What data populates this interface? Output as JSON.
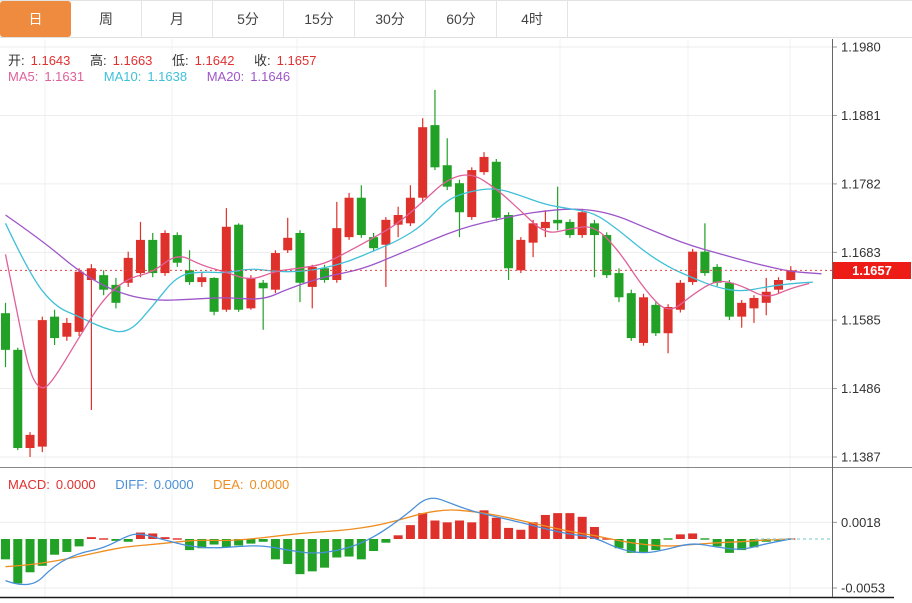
{
  "tabs": {
    "items": [
      {
        "label": "日",
        "active": true
      },
      {
        "label": "周",
        "active": false
      },
      {
        "label": "月",
        "active": false
      },
      {
        "label": "5分",
        "active": false
      },
      {
        "label": "15分",
        "active": false
      },
      {
        "label": "30分",
        "active": false
      },
      {
        "label": "60分",
        "active": false
      },
      {
        "label": "4时",
        "active": false
      }
    ]
  },
  "quote_bar": {
    "open_label": "开:",
    "open": "1.1643",
    "high_label": "高:",
    "high": "1.1663",
    "low_label": "低:",
    "low": "1.1642",
    "close_label": "收:",
    "close": "1.1657"
  },
  "ma_bar": {
    "ma5_label": "MA5:",
    "ma5": "1.1631",
    "ma10_label": "MA10:",
    "ma10": "1.1638",
    "ma20_label": "MA20:",
    "ma20": "1.1646"
  },
  "macd_bar": {
    "macd_label": "MACD:",
    "macd": "0.0000",
    "diff_label": "DIFF:",
    "diff": "0.0000",
    "dea_label": "DEA:",
    "dea": "0.0000"
  },
  "price_axis": {
    "labels": [
      "1.1980",
      "1.1881",
      "1.1782",
      "1.1683",
      "1.1585",
      "1.1486",
      "1.1387"
    ],
    "current": "1.1657"
  },
  "macd_axis": {
    "labels": [
      "0.0018",
      "-0.0053"
    ]
  },
  "colors": {
    "accent_orange": "#ef8b3f",
    "up": "#df312b",
    "down": "#21a126",
    "value_red": "#e03131",
    "label_dark": "#333333",
    "ma5": "#e0609a",
    "ma10": "#3fc0d8",
    "ma20": "#9d56c9",
    "diff_blue": "#4a90d9",
    "dea_orange": "#ef8d1f",
    "tag_bg": "#ee1c16",
    "tag_text": "#ffffff",
    "dotted_line": "#e64545",
    "grid": "#ededed",
    "grid_v": "#f1f1f1",
    "axis_line": "#888888",
    "axis_text": "#333333",
    "zero_dash": "#8fd3d3",
    "bottom_line": "#1b1b1b"
  },
  "chart_data": {
    "type": "candlestick",
    "symbol_stats": {
      "open": 1.1643,
      "high": 1.1663,
      "low": 1.1642,
      "close": 1.1657,
      "ma5": 1.1631,
      "ma10": 1.1638,
      "ma20": 1.1646,
      "macd": 0.0,
      "diff": 0.0,
      "dea": 0.0
    },
    "price_panel": {
      "ylim": [
        1.1387,
        1.198
      ],
      "ticks": [
        1.198,
        1.1881,
        1.1782,
        1.1683,
        1.1585,
        1.1486,
        1.1387
      ],
      "current_price": 1.1657,
      "candles": [
        [
          1.1595,
          1.161,
          1.1517,
          1.1542
        ],
        [
          1.1542,
          1.1545,
          1.1397,
          1.14
        ],
        [
          1.14,
          1.1423,
          1.1387,
          1.1419
        ],
        [
          1.1402,
          1.159,
          1.1394,
          1.1585
        ],
        [
          1.159,
          1.16,
          1.1549,
          1.1559
        ],
        [
          1.1561,
          1.1588,
          1.1555,
          1.1581
        ],
        [
          1.1568,
          1.166,
          1.1562,
          1.1655
        ],
        [
          1.1643,
          1.1666,
          1.1455,
          1.166
        ],
        [
          1.165,
          1.1657,
          1.1621,
          1.1629
        ],
        [
          1.1636,
          1.1646,
          1.1602,
          1.161
        ],
        [
          1.1639,
          1.1684,
          1.1633,
          1.1675
        ],
        [
          1.1653,
          1.1727,
          1.1647,
          1.1701
        ],
        [
          1.1701,
          1.1711,
          1.1647,
          1.1653
        ],
        [
          1.1653,
          1.1715,
          1.1649,
          1.1711
        ],
        [
          1.1708,
          1.1712,
          1.1662,
          1.1668
        ],
        [
          1.1657,
          1.1686,
          1.1636,
          1.164
        ],
        [
          1.164,
          1.1655,
          1.1633,
          1.1647
        ],
        [
          1.1646,
          1.1647,
          1.1592,
          1.1597
        ],
        [
          1.16,
          1.1747,
          1.1597,
          1.172
        ],
        [
          1.1723,
          1.1725,
          1.1597,
          1.16
        ],
        [
          1.1602,
          1.165,
          1.16,
          1.1646
        ],
        [
          1.1639,
          1.1643,
          1.1571,
          1.1631
        ],
        [
          1.1629,
          1.1686,
          1.1624,
          1.1682
        ],
        [
          1.1686,
          1.1733,
          1.1682,
          1.1704
        ],
        [
          1.1711,
          1.1715,
          1.1611,
          1.1639
        ],
        [
          1.1633,
          1.1665,
          1.1602,
          1.1662
        ],
        [
          1.166,
          1.1665,
          1.1639,
          1.1643
        ],
        [
          1.1643,
          1.1756,
          1.1639,
          1.1718
        ],
        [
          1.1705,
          1.1769,
          1.1701,
          1.1762
        ],
        [
          1.1762,
          1.178,
          1.1704,
          1.1708
        ],
        [
          1.1705,
          1.1711,
          1.1685,
          1.1689
        ],
        [
          1.1694,
          1.1734,
          1.1633,
          1.173
        ],
        [
          1.1723,
          1.1749,
          1.1705,
          1.1737
        ],
        [
          1.1725,
          1.178,
          1.1721,
          1.1762
        ],
        [
          1.1762,
          1.1877,
          1.1757,
          1.1864
        ],
        [
          1.1867,
          1.1918,
          1.1802,
          1.1806
        ],
        [
          1.1809,
          1.1848,
          1.1773,
          1.1778
        ],
        [
          1.1783,
          1.1788,
          1.1705,
          1.1741
        ],
        [
          1.1734,
          1.1806,
          1.173,
          1.1802
        ],
        [
          1.1799,
          1.1828,
          1.1795,
          1.1821
        ],
        [
          1.1814,
          1.1818,
          1.1728,
          1.1733
        ],
        [
          1.1737,
          1.1741,
          1.1643,
          1.166
        ],
        [
          1.1657,
          1.1705,
          1.1653,
          1.1701
        ],
        [
          1.1697,
          1.173,
          1.1676,
          1.1725
        ],
        [
          1.1718,
          1.1744,
          1.1705,
          1.1727
        ],
        [
          1.173,
          1.1778,
          1.1715,
          1.1725
        ],
        [
          1.1727,
          1.1731,
          1.1704,
          1.1708
        ],
        [
          1.1708,
          1.1746,
          1.1704,
          1.1741
        ],
        [
          1.1725,
          1.173,
          1.1647,
          1.1708
        ],
        [
          1.1708,
          1.1712,
          1.1646,
          1.165
        ],
        [
          1.1653,
          1.166,
          1.1611,
          1.1618
        ],
        [
          1.1624,
          1.1629,
          1.1555,
          1.1559
        ],
        [
          1.1552,
          1.1623,
          1.1548,
          1.1618
        ],
        [
          1.1607,
          1.1611,
          1.1562,
          1.1566
        ],
        [
          1.1566,
          1.1608,
          1.1537,
          1.1604
        ],
        [
          1.16,
          1.1643,
          1.1596,
          1.1639
        ],
        [
          1.164,
          1.1688,
          1.1636,
          1.1684
        ],
        [
          1.1684,
          1.1725,
          1.1649,
          1.1653
        ],
        [
          1.1662,
          1.1666,
          1.1634,
          1.1639
        ],
        [
          1.1639,
          1.1643,
          1.1585,
          1.159
        ],
        [
          1.159,
          1.1614,
          1.1574,
          1.161
        ],
        [
          1.1602,
          1.1621,
          1.1581,
          1.1617
        ],
        [
          1.161,
          1.1646,
          1.1592,
          1.1626
        ],
        [
          1.1629,
          1.1647,
          1.1624,
          1.1643
        ],
        [
          1.1643,
          1.1663,
          1.1642,
          1.1657
        ]
      ],
      "ma5_points": [
        [
          0,
          1.168
        ],
        [
          1,
          1.159
        ],
        [
          2,
          1.1505
        ],
        [
          3,
          1.1482
        ],
        [
          4,
          1.1501
        ],
        [
          6,
          1.156
        ],
        [
          8,
          1.1617
        ],
        [
          10,
          1.1646
        ],
        [
          12,
          1.1654
        ],
        [
          14,
          1.1682
        ],
        [
          16,
          1.1664
        ],
        [
          18,
          1.1654
        ],
        [
          20,
          1.1642
        ],
        [
          22,
          1.1656
        ],
        [
          24,
          1.166
        ],
        [
          26,
          1.1666
        ],
        [
          28,
          1.1685
        ],
        [
          30,
          1.1704
        ],
        [
          32,
          1.1725
        ],
        [
          34,
          1.1756
        ],
        [
          36,
          1.1789
        ],
        [
          38,
          1.1798
        ],
        [
          40,
          1.1775
        ],
        [
          42,
          1.1743
        ],
        [
          44,
          1.1709
        ],
        [
          46,
          1.1717
        ],
        [
          48,
          1.1722
        ],
        [
          50,
          1.1685
        ],
        [
          52,
          1.1631
        ],
        [
          54,
          1.1593
        ],
        [
          56,
          1.1622
        ],
        [
          58,
          1.1644
        ],
        [
          60,
          1.1635
        ],
        [
          62,
          1.1616
        ],
        [
          64,
          1.1631
        ],
        [
          65.5,
          1.1638
        ]
      ],
      "ma10_points": [
        [
          0,
          1.1725
        ],
        [
          2,
          1.165
        ],
        [
          4,
          1.1605
        ],
        [
          6,
          1.159
        ],
        [
          8,
          1.1573
        ],
        [
          10,
          1.1565
        ],
        [
          12,
          1.1605
        ],
        [
          14,
          1.165
        ],
        [
          16,
          1.1655
        ],
        [
          18,
          1.1653
        ],
        [
          20,
          1.166
        ],
        [
          22,
          1.1655
        ],
        [
          24,
          1.1655
        ],
        [
          26,
          1.166
        ],
        [
          28,
          1.167
        ],
        [
          30,
          1.1685
        ],
        [
          32,
          1.17
        ],
        [
          34,
          1.1722
        ],
        [
          36,
          1.176
        ],
        [
          38,
          1.1772
        ],
        [
          40,
          1.1776
        ],
        [
          42,
          1.1765
        ],
        [
          44,
          1.1752
        ],
        [
          46,
          1.1746
        ],
        [
          48,
          1.174
        ],
        [
          50,
          1.1715
        ],
        [
          52,
          1.1685
        ],
        [
          54,
          1.1662
        ],
        [
          56,
          1.1646
        ],
        [
          58,
          1.1632
        ],
        [
          60,
          1.1626
        ],
        [
          62,
          1.1633
        ],
        [
          64,
          1.1638
        ],
        [
          65.8,
          1.164
        ]
      ],
      "ma20_points": [
        [
          0,
          1.1737
        ],
        [
          3,
          1.17
        ],
        [
          6,
          1.1655
        ],
        [
          9,
          1.1625
        ],
        [
          12,
          1.1613
        ],
        [
          15,
          1.1615
        ],
        [
          18,
          1.1618
        ],
        [
          21,
          1.1614
        ],
        [
          23,
          1.163
        ],
        [
          26,
          1.1648
        ],
        [
          29,
          1.1658
        ],
        [
          32,
          1.168
        ],
        [
          34,
          1.1695
        ],
        [
          36,
          1.171
        ],
        [
          38,
          1.1722
        ],
        [
          40,
          1.173
        ],
        [
          42,
          1.1738
        ],
        [
          44,
          1.1743
        ],
        [
          46,
          1.1746
        ],
        [
          48,
          1.1744
        ],
        [
          50,
          1.1735
        ],
        [
          52,
          1.172
        ],
        [
          54,
          1.1705
        ],
        [
          56,
          1.1692
        ],
        [
          58,
          1.1682
        ],
        [
          60,
          1.1672
        ],
        [
          62,
          1.1663
        ],
        [
          64,
          1.1655
        ],
        [
          66.5,
          1.1652
        ]
      ]
    },
    "macd_panel": {
      "ticks": [
        0.0018,
        -0.0053
      ],
      "zero": 0,
      "hist": [
        -0.0022,
        -0.0048,
        -0.0036,
        -0.0029,
        -0.0017,
        -0.0014,
        -0.0008,
        0.0002,
        0.0001,
        -0.0002,
        -0.0003,
        0.0007,
        0.0006,
        0.0002,
        0.0001,
        -0.0012,
        -0.001,
        -0.0006,
        -0.0009,
        -0.0007,
        -0.0005,
        -0.0003,
        -0.0022,
        -0.0027,
        -0.0038,
        -0.0035,
        -0.0031,
        -0.002,
        -0.0019,
        -0.0022,
        -0.0013,
        -0.0004,
        0.0004,
        0.0015,
        0.0028,
        0.002,
        0.0018,
        0.002,
        0.0018,
        0.0031,
        0.0023,
        0.0012,
        0.001,
        0.0018,
        0.0026,
        0.0028,
        0.0028,
        0.0024,
        0.0013,
        0.0001,
        -0.001,
        -0.0015,
        -0.0014,
        -0.0012,
        -0.0001,
        0.0005,
        0.0006,
        -0.0001,
        -0.0008,
        -0.0015,
        -0.0012,
        -0.0009,
        -0.0003,
        -0.0002,
        0.0
      ],
      "diff_points": [
        [
          0,
          -0.0045
        ],
        [
          2,
          -0.0055
        ],
        [
          4,
          -0.0028
        ],
        [
          6,
          -0.0015
        ],
        [
          8,
          -0.001
        ],
        [
          10,
          0.0004
        ],
        [
          11,
          0.0006
        ],
        [
          13,
          -0.0001
        ],
        [
          15,
          -0.0008
        ],
        [
          17,
          -0.001
        ],
        [
          19,
          -0.0008
        ],
        [
          21,
          -0.0007
        ],
        [
          23,
          -0.0012
        ],
        [
          25,
          -0.0016
        ],
        [
          27,
          -0.0013
        ],
        [
          29,
          -0.0005
        ],
        [
          31,
          0.001
        ],
        [
          33,
          0.003
        ],
        [
          34,
          0.0042
        ],
        [
          35,
          0.0045
        ],
        [
          36,
          0.004
        ],
        [
          38,
          0.003
        ],
        [
          40,
          0.0024
        ],
        [
          42,
          0.0018
        ],
        [
          44,
          0.0011
        ],
        [
          46,
          0.0005
        ],
        [
          48,
          0.0002
        ],
        [
          50,
          -0.0011
        ],
        [
          52,
          -0.0016
        ],
        [
          54,
          -0.0011
        ],
        [
          56,
          -0.0004
        ],
        [
          58,
          -0.0009
        ],
        [
          60,
          -0.0012
        ],
        [
          62,
          -0.0005
        ],
        [
          64,
          0.0
        ]
      ],
      "dea_points": [
        [
          0,
          -0.003
        ],
        [
          2,
          -0.0028
        ],
        [
          4,
          -0.0024
        ],
        [
          6,
          -0.0019
        ],
        [
          8,
          -0.0013
        ],
        [
          10,
          -0.0008
        ],
        [
          12,
          -0.0006
        ],
        [
          14,
          -0.0003
        ],
        [
          16,
          -0.0001
        ],
        [
          18,
          -0.0002
        ],
        [
          20,
          0.0
        ],
        [
          22,
          0.0003
        ],
        [
          24,
          0.0006
        ],
        [
          26,
          0.0008
        ],
        [
          28,
          0.001
        ],
        [
          30,
          0.0014
        ],
        [
          32,
          0.002
        ],
        [
          34,
          0.0028
        ],
        [
          36,
          0.0032
        ],
        [
          38,
          0.003
        ],
        [
          40,
          0.0026
        ],
        [
          42,
          0.002
        ],
        [
          44,
          0.0014
        ],
        [
          46,
          0.0008
        ],
        [
          48,
          0.0004
        ],
        [
          50,
          -0.0002
        ],
        [
          52,
          -0.0006
        ],
        [
          54,
          -0.0008
        ],
        [
          56,
          -0.0006
        ],
        [
          58,
          -0.0004
        ],
        [
          60,
          -0.0003
        ],
        [
          62,
          -0.0001
        ],
        [
          64,
          0.0
        ]
      ]
    }
  }
}
